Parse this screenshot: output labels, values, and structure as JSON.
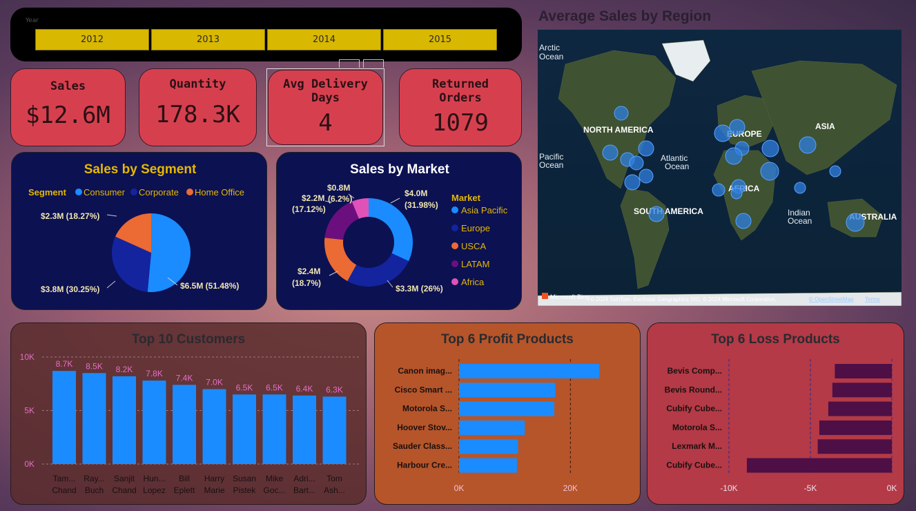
{
  "slicer": {
    "caption": "Year",
    "years": [
      "2012",
      "2013",
      "2014",
      "2015"
    ]
  },
  "kpis": {
    "sales": {
      "title": "Sales",
      "value": "$12.6M"
    },
    "quantity": {
      "title": "Quantity",
      "value": "178.3K"
    },
    "delivery": {
      "title_line1": "Avg Delivery",
      "title_line2": "Days",
      "value": "4"
    },
    "returned": {
      "title_line1": "Returned",
      "title_line2": "Orders",
      "value": "1079"
    }
  },
  "segment_chart": {
    "title": "Sales by Segment",
    "legend_title": "Segment",
    "legend": [
      "Consumer",
      "Corporate",
      "Home Office"
    ],
    "colors": [
      "#1a8cff",
      "#13249e",
      "#ec6a33"
    ],
    "chart_data": {
      "type": "pie",
      "categories": [
        "Consumer",
        "Corporate",
        "Home Office"
      ],
      "values": [
        51.48,
        30.25,
        18.27
      ],
      "labels": [
        "$6.5M (51.48%)",
        "$3.8M (30.25%)",
        "$2.3M (18.27%)"
      ]
    }
  },
  "market_chart": {
    "title": "Sales by Market",
    "legend_title": "Market",
    "legend": [
      "Asia Pacific",
      "Europe",
      "USCA",
      "LATAM",
      "Africa"
    ],
    "colors": [
      "#1a8cff",
      "#13249e",
      "#ec6a33",
      "#6b0f7e",
      "#e052b8"
    ],
    "chart_data": {
      "type": "pie",
      "categories": [
        "Asia Pacific",
        "Europe",
        "USCA",
        "LATAM",
        "Africa"
      ],
      "values": [
        31.98,
        26,
        18.7,
        17.12,
        6.2
      ],
      "label_values": [
        "$4.0M",
        "$3.3M",
        "$2.4M",
        "$2.2M",
        "$0.8M"
      ],
      "label_pcts": [
        "(31.98%)",
        "(26%)",
        "(18.7%)",
        "(17.12%)",
        "(6.2%)"
      ]
    }
  },
  "map": {
    "title": "Average Sales by Region",
    "labels": [
      "Arctic",
      "Ocean",
      "NORTH AMERICA",
      "Pacific",
      "Ocean",
      "Atlantic",
      "Ocean",
      "EUROPE",
      "ASIA",
      "AFRICA",
      "SOUTH AMERICA",
      "Indian",
      "Ocean",
      "AUSTRALIA"
    ],
    "bing": "Microsoft Bing",
    "attribution": "© 2024 TomTom, Earthstar Geographics SIO, © 2024 Microsoft Corporation,",
    "osm_link": "© OpenStreetMap",
    "terms_link": "Terms"
  },
  "customers_chart": {
    "title": "Top 10 Customers",
    "bar_color": "#1a8cff",
    "label_color": "#e46fc6",
    "chart_data": {
      "type": "bar",
      "categories": [
        [
          "Tam...",
          "Chand"
        ],
        [
          "Ray...",
          "Buch"
        ],
        [
          "Sanjit",
          "Chand"
        ],
        [
          "Hun...",
          "Lopez"
        ],
        [
          "Bill",
          "Eplett"
        ],
        [
          "Harry",
          "Marie"
        ],
        [
          "Susan",
          "Pistek"
        ],
        [
          "Mike",
          "Goc..."
        ],
        [
          "Adri...",
          "Bart..."
        ],
        [
          "Tom",
          "Ash..."
        ]
      ],
      "values": [
        8700,
        8500,
        8200,
        7800,
        7400,
        7000,
        6500,
        6500,
        6400,
        6300
      ],
      "data_labels": [
        "8.7K",
        "8.5K",
        "8.2K",
        "7.8K",
        "7.4K",
        "7.0K",
        "6.5K",
        "6.5K",
        "6.4K",
        "6.3K"
      ],
      "yticks": [
        "0K",
        "5K",
        "10K"
      ],
      "ylim": [
        0,
        10000
      ]
    }
  },
  "profit_chart": {
    "title": "Top 6 Profit Products",
    "bar_color": "#1a8cff",
    "chart_data": {
      "type": "bar",
      "categories": [
        "Canon imag...",
        "Cisco Smart ...",
        "Motorola S...",
        "Hoover Stov...",
        "Sauder Class...",
        "Harbour Cre..."
      ],
      "values": [
        25200,
        17300,
        17100,
        11800,
        10600,
        10400
      ],
      "xticks": [
        "0K",
        "20K"
      ],
      "xlim": [
        0,
        30000
      ]
    }
  },
  "loss_chart": {
    "title": "Top 6 Loss Products",
    "bar_color": "#4d0f45",
    "chart_data": {
      "type": "bar",
      "categories": [
        "Bevis Comp...",
        "Bevis Round...",
        "Cubify Cube...",
        "Motorola S...",
        "Lexmark M...",
        "Cubify Cube..."
      ],
      "values": [
        -3500,
        -3650,
        -3900,
        -4450,
        -4550,
        -8900
      ],
      "xticks": [
        "-10K",
        "-5K",
        "0K"
      ],
      "xlim": [
        -10000,
        0
      ]
    }
  }
}
